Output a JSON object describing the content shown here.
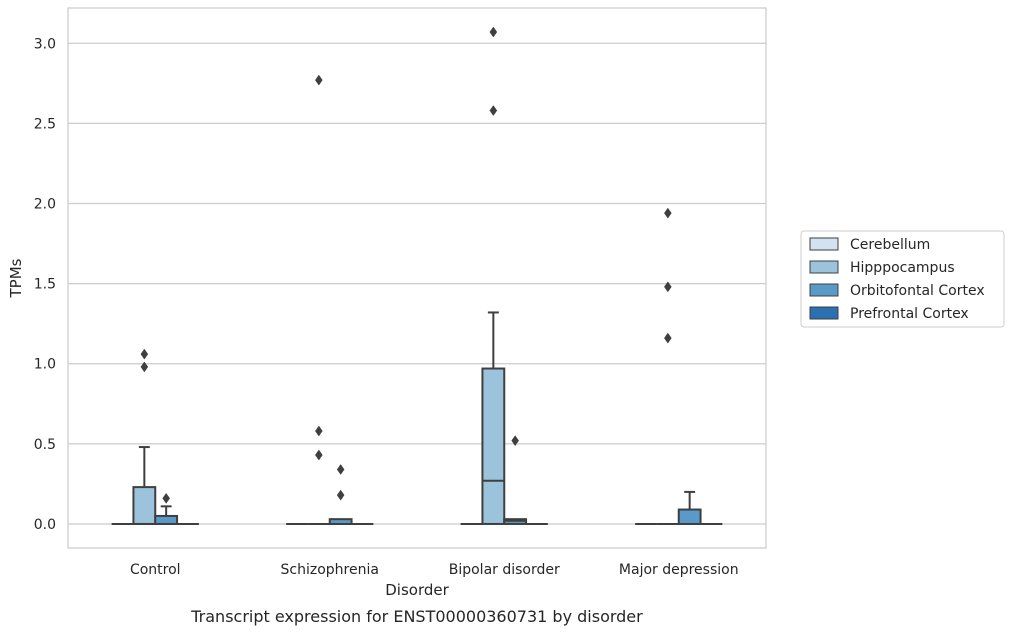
{
  "chart_data": {
    "type": "box",
    "xlabel": "Disorder",
    "ylabel": "TPMs",
    "caption": "Transcript expression for ENST00000360731 by disorder",
    "categories": [
      "Control",
      "Schizophrenia",
      "Bipolar disorder",
      "Major depression"
    ],
    "ylim": [
      -0.15,
      3.22
    ],
    "yticks": [
      "0.0",
      "0.5",
      "1.0",
      "1.5",
      "2.0",
      "2.5",
      "3.0"
    ],
    "grid": true,
    "legend": {
      "placement": "right",
      "entries": [
        "Cerebellum",
        "Hipppocampus",
        "Orbitofontal Cortex",
        "Prefrontal Cortex"
      ]
    },
    "colors": [
      "#d2e2f0",
      "#9bc3db",
      "#5a9ac9",
      "#2b70b0"
    ],
    "series": [
      {
        "name": "Cerebellum",
        "boxes": [
          {
            "q1": 0,
            "median": 0,
            "q3": 0,
            "whislo": 0,
            "whishi": 0,
            "fliers": []
          },
          {
            "q1": 0,
            "median": 0,
            "q3": 0,
            "whislo": 0,
            "whishi": 0,
            "fliers": []
          },
          {
            "q1": 0,
            "median": 0,
            "q3": 0,
            "whislo": 0,
            "whishi": 0,
            "fliers": []
          },
          {
            "q1": 0,
            "median": 0,
            "q3": 0,
            "whislo": 0,
            "whishi": 0,
            "fliers": []
          }
        ]
      },
      {
        "name": "Hipppocampus",
        "boxes": [
          {
            "q1": 0,
            "median": 0,
            "q3": 0.23,
            "whislo": 0,
            "whishi": 0.48,
            "fliers": [
              0.98,
              1.06
            ]
          },
          {
            "q1": 0,
            "median": 0,
            "q3": 0,
            "whislo": 0,
            "whishi": 0,
            "fliers": [
              0.43,
              0.58,
              2.77
            ]
          },
          {
            "q1": 0,
            "median": 0.27,
            "q3": 0.97,
            "whislo": 0,
            "whishi": 1.32,
            "fliers": [
              2.58,
              3.07
            ]
          },
          {
            "q1": 0,
            "median": 0,
            "q3": 0,
            "whislo": 0,
            "whishi": 0,
            "fliers": [
              1.16,
              1.48,
              1.94
            ]
          }
        ]
      },
      {
        "name": "Orbitofontal Cortex",
        "boxes": [
          {
            "q1": 0,
            "median": 0,
            "q3": 0.05,
            "whislo": 0,
            "whishi": 0.11,
            "fliers": [
              0.16
            ]
          },
          {
            "q1": 0,
            "median": 0,
            "q3": 0.03,
            "whislo": 0,
            "whishi": 0.03,
            "fliers": [
              0.18,
              0.34
            ]
          },
          {
            "q1": 0,
            "median": 0.02,
            "q3": 0.03,
            "whislo": 0,
            "whishi": 0.03,
            "fliers": [
              0.52
            ]
          },
          {
            "q1": 0,
            "median": 0,
            "q3": 0.09,
            "whislo": 0,
            "whishi": 0.2,
            "fliers": []
          }
        ]
      },
      {
        "name": "Prefrontal Cortex",
        "boxes": [
          {
            "q1": 0,
            "median": 0,
            "q3": 0,
            "whislo": 0,
            "whishi": 0,
            "fliers": []
          },
          {
            "q1": 0,
            "median": 0,
            "q3": 0,
            "whislo": 0,
            "whishi": 0,
            "fliers": []
          },
          {
            "q1": 0,
            "median": 0,
            "q3": 0,
            "whislo": 0,
            "whishi": 0,
            "fliers": []
          },
          {
            "q1": 0,
            "median": 0,
            "q3": 0,
            "whislo": 0,
            "whishi": 0,
            "fliers": []
          }
        ]
      }
    ]
  }
}
